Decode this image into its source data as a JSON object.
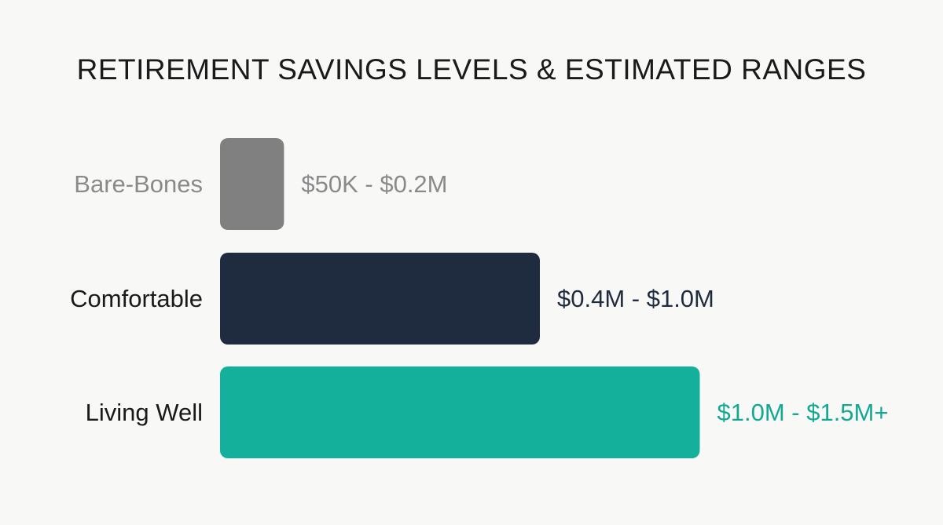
{
  "chart_data": {
    "type": "bar",
    "orientation": "horizontal",
    "title": "RETIREMENT SAVINGS LEVELS & ESTIMATED RANGES",
    "categories": [
      "Bare-Bones",
      "Comfortable",
      "Living Well"
    ],
    "ranges": [
      {
        "low": 0.05,
        "high": 0.2,
        "unit": "M"
      },
      {
        "low": 0.4,
        "high": 1.0,
        "unit": "M"
      },
      {
        "low": 1.0,
        "high": 1.5,
        "unit": "M"
      }
    ],
    "value_labels": [
      "$50K - $0.2M",
      "$0.4M - $1.0M",
      "$1.0M - $1.5M+"
    ],
    "values": [
      0.2,
      1.0,
      1.5
    ],
    "colors": [
      "#808080",
      "#1f2b3e",
      "#14b09b"
    ],
    "label_colors": [
      "#8a8a8a",
      "#1a1a1a",
      "#1a1a1a"
    ],
    "value_label_colors": [
      "#8a8a8a",
      "#1f2b3e",
      "#14a893"
    ],
    "xlim": [
      0,
      1.5
    ],
    "grid": false,
    "legend": "none"
  }
}
